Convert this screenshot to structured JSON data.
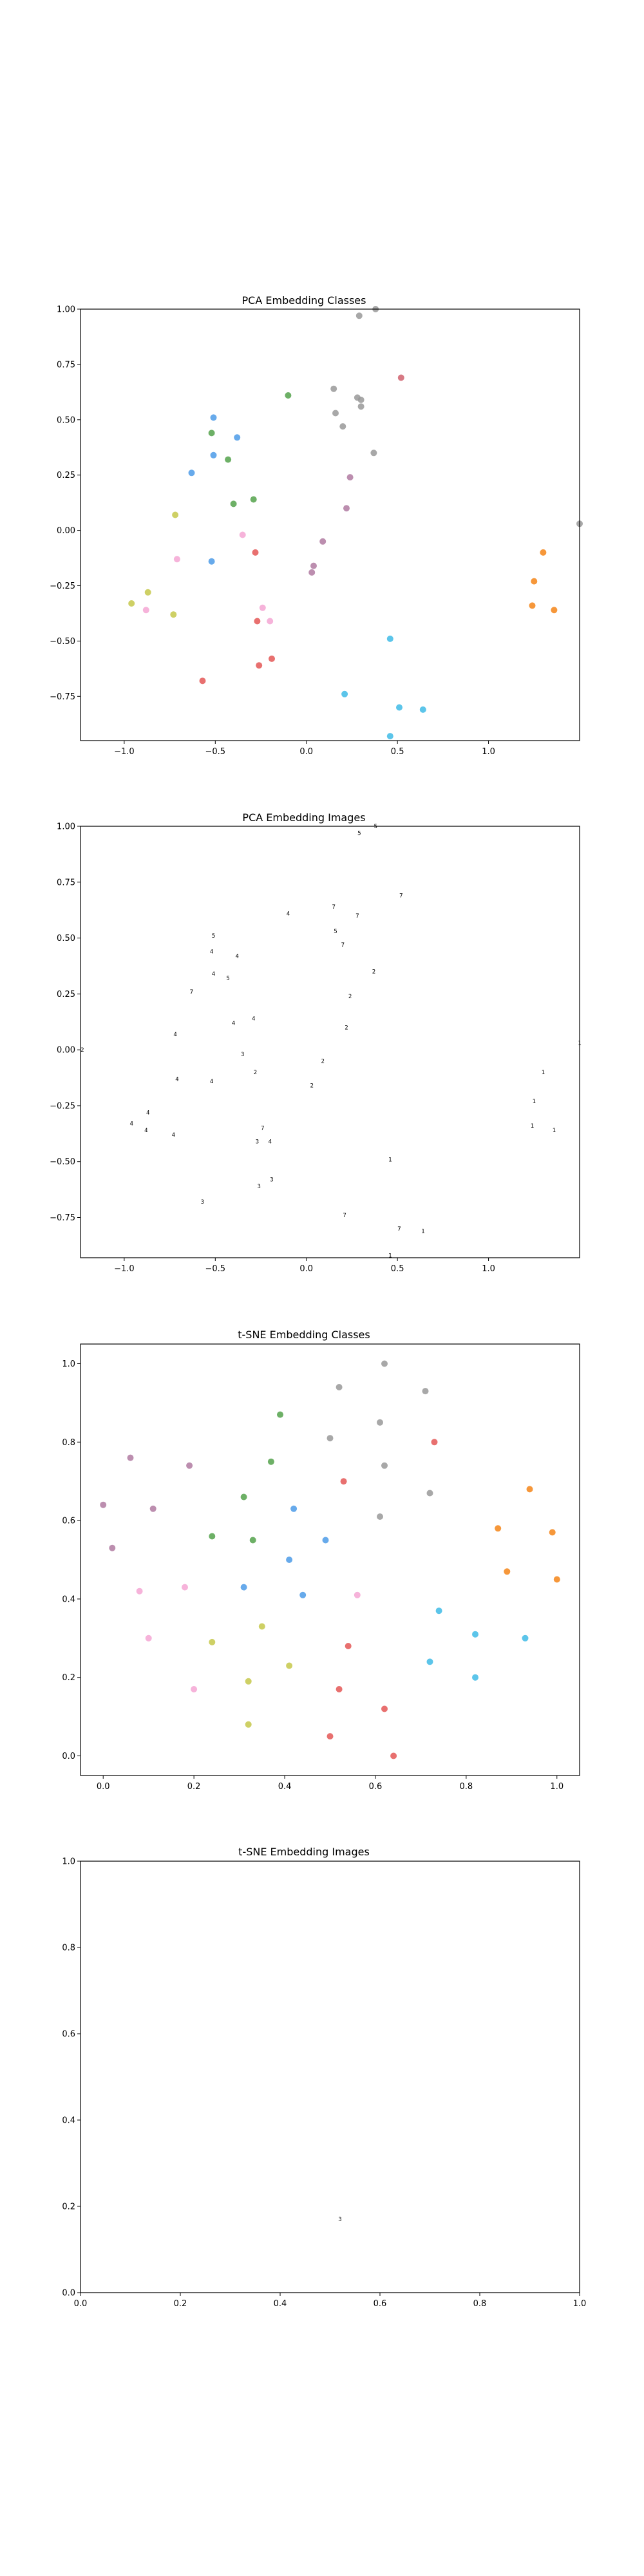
{
  "chart_data": [
    {
      "id": "pca-classes",
      "type": "scatter",
      "title": "PCA Embedding Classes",
      "xlim": [
        -1.24,
        1.5
      ],
      "ylim": [
        -0.95,
        1.0
      ],
      "xticks": [
        -1.0,
        -0.5,
        0.0,
        0.5,
        1.0
      ],
      "yticks": [
        -0.75,
        -0.5,
        -0.25,
        0.0,
        0.25,
        0.5,
        0.75,
        1.0
      ],
      "xtick_labels": [
        "−1.0",
        "−0.5",
        "0.0",
        "0.5",
        "1.0"
      ],
      "ytick_labels": [
        "−0.75",
        "−0.50",
        "−0.25",
        "0.00",
        "0.25",
        "0.50",
        "0.75",
        "1.00"
      ],
      "grid": false,
      "points": [
        {
          "x": 0.29,
          "y": 0.97,
          "c": "#999999"
        },
        {
          "x": 0.38,
          "y": 1.0,
          "c": "#999999"
        },
        {
          "x": 0.15,
          "y": 0.64,
          "c": "#999999"
        },
        {
          "x": 0.28,
          "y": 0.6,
          "c": "#999999"
        },
        {
          "x": 0.3,
          "y": 0.59,
          "c": "#999999"
        },
        {
          "x": 0.3,
          "y": 0.56,
          "c": "#999999"
        },
        {
          "x": 0.16,
          "y": 0.53,
          "c": "#999999"
        },
        {
          "x": 0.2,
          "y": 0.47,
          "c": "#999999"
        },
        {
          "x": 0.37,
          "y": 0.35,
          "c": "#999999"
        },
        {
          "x": 1.5,
          "y": 0.03,
          "c": "#999999"
        },
        {
          "x": 0.52,
          "y": 0.69,
          "c": "#d0626f"
        },
        {
          "x": -0.28,
          "y": -0.1,
          "c": "#e45756"
        },
        {
          "x": -0.27,
          "y": -0.41,
          "c": "#e45756"
        },
        {
          "x": -0.19,
          "y": -0.58,
          "c": "#e45756"
        },
        {
          "x": -0.26,
          "y": -0.61,
          "c": "#e45756"
        },
        {
          "x": -0.57,
          "y": -0.68,
          "c": "#e45756"
        },
        {
          "x": -0.1,
          "y": 0.61,
          "c": "#54a24b"
        },
        {
          "x": -0.52,
          "y": 0.44,
          "c": "#54a24b"
        },
        {
          "x": -0.43,
          "y": 0.32,
          "c": "#54a24b"
        },
        {
          "x": -0.4,
          "y": 0.12,
          "c": "#54a24b"
        },
        {
          "x": -0.29,
          "y": 0.14,
          "c": "#54a24b"
        },
        {
          "x": -0.51,
          "y": 0.51,
          "c": "#4c9be8"
        },
        {
          "x": -0.38,
          "y": 0.42,
          "c": "#4c9be8"
        },
        {
          "x": -0.51,
          "y": 0.34,
          "c": "#4c9be8"
        },
        {
          "x": -0.63,
          "y": 0.26,
          "c": "#4c9be8"
        },
        {
          "x": -0.52,
          "y": -0.14,
          "c": "#4c9be8"
        },
        {
          "x": 0.24,
          "y": 0.24,
          "c": "#b07aa1"
        },
        {
          "x": 0.22,
          "y": 0.1,
          "c": "#b07aa1"
        },
        {
          "x": 0.09,
          "y": -0.05,
          "c": "#b07aa1"
        },
        {
          "x": 0.04,
          "y": -0.16,
          "c": "#b07aa1"
        },
        {
          "x": 0.03,
          "y": -0.19,
          "c": "#b07aa1"
        },
        {
          "x": -0.35,
          "y": -0.02,
          "c": "#f4a6d4"
        },
        {
          "x": -0.71,
          "y": -0.13,
          "c": "#f4a6d4"
        },
        {
          "x": -0.24,
          "y": -0.35,
          "c": "#f4a6d4"
        },
        {
          "x": -0.2,
          "y": -0.41,
          "c": "#f4a6d4"
        },
        {
          "x": -0.88,
          "y": -0.36,
          "c": "#f4a6d4"
        },
        {
          "x": -0.72,
          "y": 0.07,
          "c": "#c5c84a"
        },
        {
          "x": -0.87,
          "y": -0.28,
          "c": "#c5c84a"
        },
        {
          "x": -0.96,
          "y": -0.33,
          "c": "#c5c84a"
        },
        {
          "x": -0.73,
          "y": -0.38,
          "c": "#c5c84a"
        },
        {
          "x": 1.3,
          "y": -0.1,
          "c": "#f58518"
        },
        {
          "x": 1.25,
          "y": -0.23,
          "c": "#f58518"
        },
        {
          "x": 1.24,
          "y": -0.34,
          "c": "#f58518"
        },
        {
          "x": 1.36,
          "y": -0.36,
          "c": "#f58518"
        },
        {
          "x": 0.46,
          "y": -0.49,
          "c": "#3fbbe6"
        },
        {
          "x": 0.21,
          "y": -0.74,
          "c": "#3fbbe6"
        },
        {
          "x": 0.51,
          "y": -0.8,
          "c": "#3fbbe6"
        },
        {
          "x": 0.64,
          "y": -0.81,
          "c": "#3fbbe6"
        },
        {
          "x": 0.46,
          "y": -0.93,
          "c": "#3fbbe6"
        }
      ]
    },
    {
      "id": "pca-images",
      "type": "scatter",
      "title": "PCA Embedding Images",
      "xlim": [
        -1.24,
        1.5
      ],
      "ylim": [
        -0.93,
        1.0
      ],
      "xticks": [
        -1.0,
        -0.5,
        0.0,
        0.5,
        1.0
      ],
      "yticks": [
        -0.75,
        -0.5,
        -0.25,
        0.0,
        0.25,
        0.5,
        0.75,
        1.0
      ],
      "xtick_labels": [
        "−1.0",
        "−0.5",
        "0.0",
        "0.5",
        "1.0"
      ],
      "ytick_labels": [
        "−0.75",
        "−0.50",
        "−0.25",
        "0.00",
        "0.25",
        "0.50",
        "0.75",
        "1.00"
      ],
      "grid": false,
      "glyph_points": [
        {
          "x": 0.29,
          "y": 0.97,
          "g": "5"
        },
        {
          "x": 0.38,
          "y": 1.0,
          "g": "5"
        },
        {
          "x": 0.15,
          "y": 0.64,
          "g": "7"
        },
        {
          "x": 0.28,
          "y": 0.6,
          "g": "7"
        },
        {
          "x": 0.16,
          "y": 0.53,
          "g": "5"
        },
        {
          "x": 0.2,
          "y": 0.47,
          "g": "7"
        },
        {
          "x": 0.37,
          "y": 0.35,
          "g": "2"
        },
        {
          "x": 0.52,
          "y": 0.69,
          "g": "7"
        },
        {
          "x": 0.24,
          "y": 0.24,
          "g": "2"
        },
        {
          "x": 0.22,
          "y": 0.1,
          "g": "2"
        },
        {
          "x": -0.1,
          "y": 0.61,
          "g": "4"
        },
        {
          "x": -0.51,
          "y": 0.51,
          "g": "5"
        },
        {
          "x": -0.52,
          "y": 0.44,
          "g": "4"
        },
        {
          "x": -0.38,
          "y": 0.42,
          "g": "4"
        },
        {
          "x": -0.51,
          "y": 0.34,
          "g": "4"
        },
        {
          "x": -0.43,
          "y": 0.32,
          "g": "5"
        },
        {
          "x": -0.63,
          "y": 0.26,
          "g": "7"
        },
        {
          "x": -0.4,
          "y": 0.12,
          "g": "4"
        },
        {
          "x": -0.29,
          "y": 0.14,
          "g": "4"
        },
        {
          "x": -0.72,
          "y": 0.07,
          "g": "4"
        },
        {
          "x": -1.23,
          "y": 0.0,
          "g": "2"
        },
        {
          "x": -0.35,
          "y": -0.02,
          "g": "3"
        },
        {
          "x": 0.09,
          "y": -0.05,
          "g": "2"
        },
        {
          "x": -0.28,
          "y": -0.1,
          "g": "2"
        },
        {
          "x": -0.71,
          "y": -0.13,
          "g": "4"
        },
        {
          "x": -0.52,
          "y": -0.14,
          "g": "4"
        },
        {
          "x": 0.03,
          "y": -0.16,
          "g": "2"
        },
        {
          "x": -0.87,
          "y": -0.28,
          "g": "4"
        },
        {
          "x": -0.96,
          "y": -0.33,
          "g": "4"
        },
        {
          "x": -0.88,
          "y": -0.36,
          "g": "4"
        },
        {
          "x": -0.24,
          "y": -0.35,
          "g": "7"
        },
        {
          "x": -0.73,
          "y": -0.38,
          "g": "4"
        },
        {
          "x": -0.27,
          "y": -0.41,
          "g": "3"
        },
        {
          "x": -0.2,
          "y": -0.41,
          "g": "4"
        },
        {
          "x": -0.19,
          "y": -0.58,
          "g": "3"
        },
        {
          "x": -0.26,
          "y": -0.61,
          "g": "3"
        },
        {
          "x": -0.57,
          "y": -0.68,
          "g": "3"
        },
        {
          "x": 0.46,
          "y": -0.49,
          "g": "1"
        },
        {
          "x": 0.21,
          "y": -0.74,
          "g": "7"
        },
        {
          "x": 0.51,
          "y": -0.8,
          "g": "7"
        },
        {
          "x": 0.64,
          "y": -0.81,
          "g": "1"
        },
        {
          "x": 0.46,
          "y": -0.92,
          "g": "1"
        },
        {
          "x": 1.3,
          "y": -0.1,
          "g": "1"
        },
        {
          "x": 1.25,
          "y": -0.23,
          "g": "1"
        },
        {
          "x": 1.24,
          "y": -0.34,
          "g": "1"
        },
        {
          "x": 1.36,
          "y": -0.36,
          "g": "1"
        },
        {
          "x": 1.5,
          "y": 0.03,
          "g": "1"
        }
      ]
    },
    {
      "id": "tsne-classes",
      "type": "scatter",
      "title": "t-SNE Embedding Classes",
      "xlim": [
        -0.05,
        1.05
      ],
      "ylim": [
        -0.05,
        1.05
      ],
      "xticks": [
        0.0,
        0.2,
        0.4,
        0.6,
        0.8,
        1.0
      ],
      "yticks": [
        0.0,
        0.2,
        0.4,
        0.6,
        0.8,
        1.0
      ],
      "xtick_labels": [
        "0.0",
        "0.2",
        "0.4",
        "0.6",
        "0.8",
        "1.0"
      ],
      "ytick_labels": [
        "0.0",
        "0.2",
        "0.4",
        "0.6",
        "0.8",
        "1.0"
      ],
      "grid": false,
      "points": [
        {
          "x": 0.62,
          "y": 1.0,
          "c": "#999999"
        },
        {
          "x": 0.52,
          "y": 0.94,
          "c": "#999999"
        },
        {
          "x": 0.71,
          "y": 0.93,
          "c": "#999999"
        },
        {
          "x": 0.61,
          "y": 0.85,
          "c": "#999999"
        },
        {
          "x": 0.5,
          "y": 0.81,
          "c": "#999999"
        },
        {
          "x": 0.62,
          "y": 0.74,
          "c": "#999999"
        },
        {
          "x": 0.72,
          "y": 0.67,
          "c": "#999999"
        },
        {
          "x": 0.61,
          "y": 0.61,
          "c": "#999999"
        },
        {
          "x": 0.73,
          "y": 0.8,
          "c": "#e45756"
        },
        {
          "x": 0.53,
          "y": 0.7,
          "c": "#e45756"
        },
        {
          "x": 0.54,
          "y": 0.28,
          "c": "#e45756"
        },
        {
          "x": 0.52,
          "y": 0.17,
          "c": "#e45756"
        },
        {
          "x": 0.62,
          "y": 0.12,
          "c": "#e45756"
        },
        {
          "x": 0.5,
          "y": 0.05,
          "c": "#e45756"
        },
        {
          "x": 0.64,
          "y": 0.0,
          "c": "#e45756"
        },
        {
          "x": 0.39,
          "y": 0.87,
          "c": "#54a24b"
        },
        {
          "x": 0.37,
          "y": 0.75,
          "c": "#54a24b"
        },
        {
          "x": 0.31,
          "y": 0.66,
          "c": "#54a24b"
        },
        {
          "x": 0.24,
          "y": 0.56,
          "c": "#54a24b"
        },
        {
          "x": 0.33,
          "y": 0.55,
          "c": "#54a24b"
        },
        {
          "x": 0.42,
          "y": 0.63,
          "c": "#4c9be8"
        },
        {
          "x": 0.41,
          "y": 0.5,
          "c": "#4c9be8"
        },
        {
          "x": 0.49,
          "y": 0.55,
          "c": "#4c9be8"
        },
        {
          "x": 0.31,
          "y": 0.43,
          "c": "#4c9be8"
        },
        {
          "x": 0.44,
          "y": 0.41,
          "c": "#4c9be8"
        },
        {
          "x": 0.06,
          "y": 0.76,
          "c": "#b07aa1"
        },
        {
          "x": 0.19,
          "y": 0.74,
          "c": "#b07aa1"
        },
        {
          "x": 0.0,
          "y": 0.64,
          "c": "#b07aa1"
        },
        {
          "x": 0.11,
          "y": 0.63,
          "c": "#b07aa1"
        },
        {
          "x": 0.02,
          "y": 0.53,
          "c": "#b07aa1"
        },
        {
          "x": 0.08,
          "y": 0.42,
          "c": "#f4a6d4"
        },
        {
          "x": 0.18,
          "y": 0.43,
          "c": "#f4a6d4"
        },
        {
          "x": 0.1,
          "y": 0.3,
          "c": "#f4a6d4"
        },
        {
          "x": 0.2,
          "y": 0.17,
          "c": "#f4a6d4"
        },
        {
          "x": 0.56,
          "y": 0.41,
          "c": "#f4a6d4"
        },
        {
          "x": 0.35,
          "y": 0.33,
          "c": "#c5c84a"
        },
        {
          "x": 0.24,
          "y": 0.29,
          "c": "#c5c84a"
        },
        {
          "x": 0.41,
          "y": 0.23,
          "c": "#c5c84a"
        },
        {
          "x": 0.32,
          "y": 0.19,
          "c": "#c5c84a"
        },
        {
          "x": 0.32,
          "y": 0.08,
          "c": "#c5c84a"
        },
        {
          "x": 0.94,
          "y": 0.68,
          "c": "#f58518"
        },
        {
          "x": 0.87,
          "y": 0.58,
          "c": "#f58518"
        },
        {
          "x": 0.99,
          "y": 0.57,
          "c": "#f58518"
        },
        {
          "x": 0.89,
          "y": 0.47,
          "c": "#f58518"
        },
        {
          "x": 1.0,
          "y": 0.45,
          "c": "#f58518"
        },
        {
          "x": 0.74,
          "y": 0.37,
          "c": "#3fbbe6"
        },
        {
          "x": 0.82,
          "y": 0.31,
          "c": "#3fbbe6"
        },
        {
          "x": 0.93,
          "y": 0.3,
          "c": "#3fbbe6"
        },
        {
          "x": 0.72,
          "y": 0.24,
          "c": "#3fbbe6"
        },
        {
          "x": 0.82,
          "y": 0.2,
          "c": "#3fbbe6"
        }
      ]
    },
    {
      "id": "tsne-images",
      "type": "scatter",
      "title": "t-SNE Embedding Images",
      "xlim": [
        0.0,
        1.0
      ],
      "ylim": [
        0.0,
        1.0
      ],
      "xticks": [
        0.0,
        0.2,
        0.4,
        0.6,
        0.8,
        1.0
      ],
      "yticks": [
        0.0,
        0.2,
        0.4,
        0.6,
        0.8,
        1.0
      ],
      "xtick_labels": [
        "0.0",
        "0.2",
        "0.4",
        "0.6",
        "0.8",
        "1.0"
      ],
      "ytick_labels": [
        "0.0",
        "0.2",
        "0.4",
        "0.6",
        "0.8",
        "1.0"
      ],
      "grid": false,
      "glyph_points": [
        {
          "x": 0.52,
          "y": 0.17,
          "g": "3"
        }
      ]
    }
  ]
}
